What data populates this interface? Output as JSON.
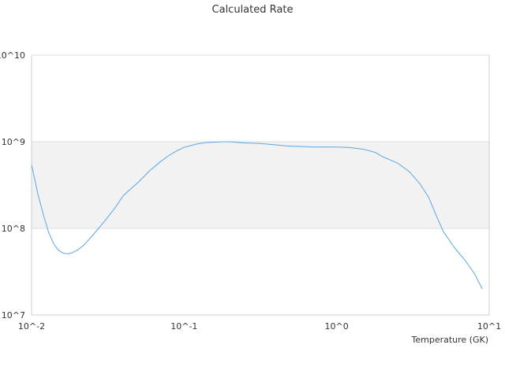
{
  "chart_data": {
    "type": "line",
    "title": "Calculated Rate",
    "xlabel": "Temperature (GK)",
    "ylabel": "",
    "xscale": "log",
    "yscale": "log",
    "xlim": [
      0.01,
      10
    ],
    "ylim": [
      10000000,
      10000000000
    ],
    "x_tick_labels": [
      "10^-2",
      "10^-1",
      "10^0",
      "10^1"
    ],
    "y_tick_labels": [
      "10^7",
      "10^8",
      "10^9",
      "10^10"
    ],
    "grid": true,
    "shaded_band": [
      100000000,
      1000000000
    ],
    "legend": "none",
    "colors": {
      "line": "#5aa6e6",
      "grid": "#dddddd",
      "band": "#f2f2f2",
      "axis": "#cccccc"
    },
    "series": [
      {
        "x": [
          0.01,
          0.011,
          0.012,
          0.013,
          0.014,
          0.015,
          0.016,
          0.017,
          0.018,
          0.02,
          0.022,
          0.025,
          0.03,
          0.035,
          0.04,
          0.05,
          0.06,
          0.07,
          0.08,
          0.09,
          0.1,
          0.12,
          0.14,
          0.16,
          0.18,
          0.2,
          0.25,
          0.3,
          0.35,
          0.4,
          0.45,
          0.5,
          0.6,
          0.7,
          0.8,
          0.9,
          1.0,
          1.2,
          1.5,
          1.8,
          2.0,
          2.5,
          3.0,
          3.5,
          4.0,
          4.5,
          5.0,
          6.0,
          7.0,
          8.0,
          9.0
        ],
        "y": [
          540000000,
          250000000,
          140000000,
          88000000,
          66000000,
          56000000,
          52000000,
          51000000,
          51500000,
          56000000,
          64000000,
          82000000,
          120000000,
          170000000,
          240000000,
          340000000,
          470000000,
          590000000,
          700000000,
          790000000,
          860000000,
          940000000,
          980000000,
          990000000,
          1000000000,
          1000000000,
          970000000,
          960000000,
          940000000,
          920000000,
          900000000,
          890000000,
          880000000,
          870000000,
          870000000,
          870000000,
          870000000,
          860000000,
          820000000,
          750000000,
          670000000,
          570000000,
          450000000,
          330000000,
          230000000,
          140000000,
          92000000,
          58000000,
          42000000,
          30000000,
          20000000
        ]
      }
    ]
  }
}
